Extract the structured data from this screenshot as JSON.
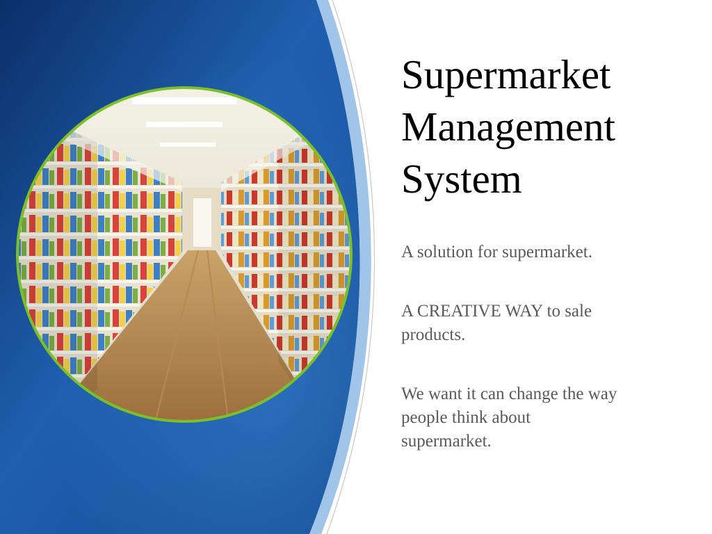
{
  "slide": {
    "title_lines": [
      "Supermarket",
      "Management",
      "System"
    ],
    "bullets": [
      {
        "lines": [
          "A solution for supermarket."
        ]
      },
      {
        "lines": [
          "A CREATIVE WAY to sale",
          "products."
        ]
      },
      {
        "lines": [
          "We want it can change the way",
          "people think about",
          "supermarket."
        ]
      }
    ]
  },
  "theme": {
    "panel_color_dark": "#0d3a78",
    "panel_color_light": "#2f75c4",
    "accent_stripe": "#7fb0de",
    "circle_border": "#7bbf2a",
    "bullet_text_color": "#595959"
  }
}
